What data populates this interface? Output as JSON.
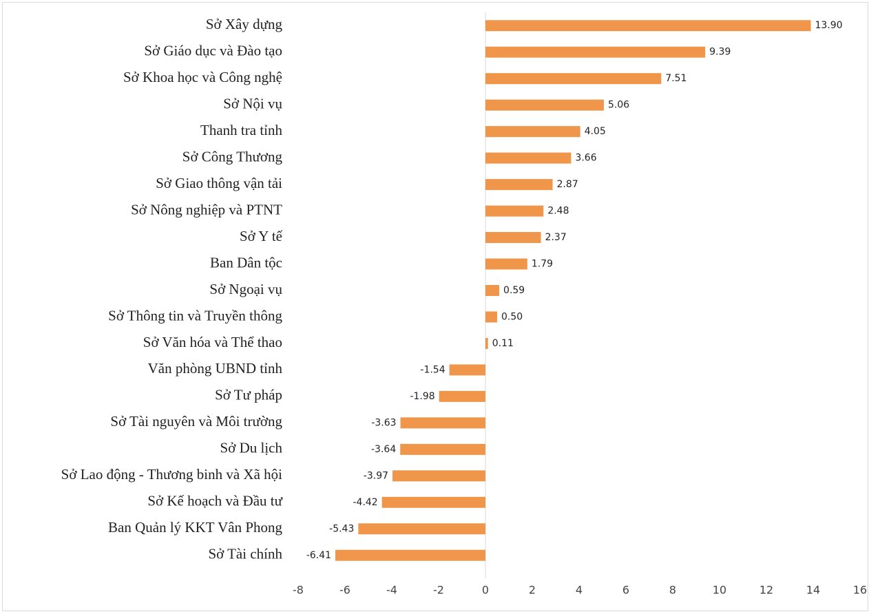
{
  "chart_data": {
    "type": "barh",
    "categories": [
      "Sở Xây dựng",
      "Sở Giáo dục và Đào tạo",
      "Sở Khoa học và Công nghệ",
      "Sở Nội vụ",
      "Thanh tra tỉnh",
      "Sở Công Thương",
      "Sở Giao thông vận tải",
      "Sở Nông nghiệp và PTNT",
      "Sở Y tế",
      "Ban Dân tộc",
      "Sở Ngoại vụ",
      "Sở Thông tin và Truyền thông",
      "Sở Văn hóa và Thể thao",
      "Văn phòng UBND tỉnh",
      "Sở Tư pháp",
      "Sở Tài nguyên và Môi trường",
      "Sở Du lịch",
      "Sở Lao động - Thương binh và Xã hội",
      "Sở Kế hoạch và Đầu tư",
      "Ban Quản lý KKT Vân Phong",
      "Sở Tài chính"
    ],
    "values": [
      13.9,
      9.39,
      7.51,
      5.06,
      4.05,
      3.66,
      2.87,
      2.48,
      2.37,
      1.79,
      0.59,
      0.5,
      0.11,
      -1.54,
      -1.98,
      -3.63,
      -3.64,
      -3.97,
      -4.42,
      -5.43,
      -6.41
    ],
    "value_labels": [
      "13.90",
      "9.39",
      "7.51",
      "5.06",
      "4.05",
      "3.66",
      "2.87",
      "2.48",
      "2.37",
      "1.79",
      "0.59",
      "0.50",
      "0.11",
      "-1.54",
      "-1.98",
      "-3.63",
      "-3.64",
      "-3.97",
      "-4.42",
      "-5.43",
      "-6.41"
    ],
    "color": "#f0964a",
    "xlim": [
      -8,
      16
    ],
    "xticks": [
      -8,
      -6,
      -4,
      -2,
      0,
      2,
      4,
      6,
      8,
      10,
      12,
      14,
      16
    ]
  }
}
